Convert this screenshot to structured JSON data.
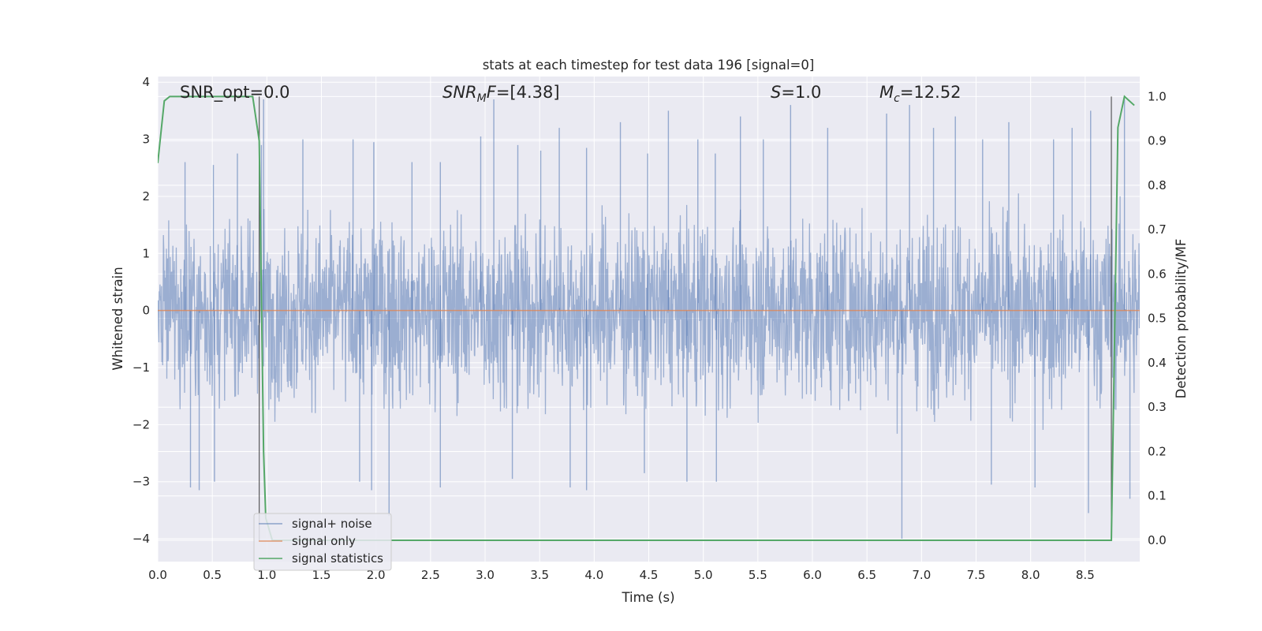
{
  "chart_data": {
    "type": "line",
    "title": "stats at each timestep for test data 196 [signal=0]",
    "xlabel": "Time (s)",
    "ylabel_left": "Whitened strain",
    "ylabel_right": "Detection probability/MF",
    "xlim": [
      0.0,
      9.0
    ],
    "ylim_left": [
      -4.4,
      4.1
    ],
    "ylim_right": [
      -0.048,
      1.045
    ],
    "x_ticks": [
      "0.0",
      "0.5",
      "1.0",
      "1.5",
      "2.0",
      "2.5",
      "3.0",
      "3.5",
      "4.0",
      "4.5",
      "5.0",
      "5.5",
      "6.0",
      "6.5",
      "7.0",
      "7.5",
      "8.0",
      "8.5"
    ],
    "y_ticks_left": [
      "4",
      "3",
      "2",
      "1",
      "0",
      "−1",
      "−2",
      "−3",
      "−4"
    ],
    "y_ticks_right": [
      "1.0",
      "0.9",
      "0.8",
      "0.7",
      "0.6",
      "0.5",
      "0.4",
      "0.3",
      "0.2",
      "0.1",
      "0.0"
    ],
    "grid": true,
    "annotations": {
      "snr_opt": "SNR_opt=0.0",
      "snr_mf_main": "SNR",
      "snr_mf_sub": "M",
      "snr_mf_rest": "F",
      "snr_mf_value": "=[4.38]",
      "s_main": "S",
      "s_value": "=1.0",
      "mc_main": "M",
      "mc_sub": "c",
      "mc_value": "=12.52"
    },
    "vertical_markers_x": [
      0.93,
      8.74
    ],
    "legend_position": "lower-left",
    "series": [
      {
        "name": "signal+ noise",
        "axis": "left",
        "color": "#4c72b0",
        "description_type": "dense_noise",
        "envelope_typical": [
          -1.7,
          1.45
        ],
        "spikes": [
          [
            0.97,
            3.7
          ],
          [
            0.25,
            2.6
          ],
          [
            0.51,
            2.55
          ],
          [
            0.73,
            2.75
          ],
          [
            0.95,
            2.9
          ],
          [
            1.33,
            3.0
          ],
          [
            1.79,
            3.0
          ],
          [
            1.98,
            2.95
          ],
          [
            2.33,
            2.6
          ],
          [
            2.59,
            2.6
          ],
          [
            2.96,
            3.05
          ],
          [
            3.08,
            3.7
          ],
          [
            3.3,
            2.9
          ],
          [
            3.51,
            2.8
          ],
          [
            3.68,
            3.2
          ],
          [
            3.93,
            2.85
          ],
          [
            4.24,
            3.3
          ],
          [
            4.49,
            2.75
          ],
          [
            4.68,
            3.5
          ],
          [
            4.95,
            3.0
          ],
          [
            5.11,
            2.75
          ],
          [
            5.34,
            3.4
          ],
          [
            5.55,
            3.0
          ],
          [
            5.8,
            3.6
          ],
          [
            6.14,
            3.2
          ],
          [
            6.68,
            3.45
          ],
          [
            6.89,
            3.6
          ],
          [
            7.11,
            3.2
          ],
          [
            7.31,
            3.4
          ],
          [
            7.56,
            3.0
          ],
          [
            7.8,
            3.3
          ],
          [
            8.21,
            3.0
          ],
          [
            8.38,
            3.2
          ],
          [
            8.55,
            3.5
          ],
          [
            8.86,
            3.7
          ],
          [
            0.3,
            -3.1
          ],
          [
            0.38,
            -3.15
          ],
          [
            0.52,
            -3.0
          ],
          [
            1.85,
            -3.0
          ],
          [
            1.96,
            -3.15
          ],
          [
            2.12,
            -3.6
          ],
          [
            2.59,
            -3.1
          ],
          [
            3.25,
            -2.95
          ],
          [
            3.78,
            -3.1
          ],
          [
            3.93,
            -3.15
          ],
          [
            4.46,
            -2.85
          ],
          [
            4.85,
            -3.0
          ],
          [
            5.12,
            -3.0
          ],
          [
            6.82,
            -4.0
          ],
          [
            7.64,
            -3.05
          ],
          [
            8.04,
            -3.1
          ],
          [
            8.53,
            -3.55
          ],
          [
            8.91,
            -3.3
          ]
        ]
      },
      {
        "name": "signal only",
        "axis": "left",
        "color": "#dd8452",
        "x": [
          0.0,
          9.0
        ],
        "y": [
          0.0,
          0.0
        ]
      },
      {
        "name": "signal statistics",
        "axis": "right",
        "color": "#55a868",
        "x": [
          0.0,
          0.06,
          0.11,
          0.5,
          0.87,
          0.93,
          0.97,
          0.99,
          1.05,
          8.74,
          8.8,
          8.86,
          8.95
        ],
        "y": [
          0.85,
          0.99,
          1.0,
          1.0,
          1.0,
          0.9,
          0.2,
          0.05,
          0.0,
          0.0,
          0.93,
          1.0,
          0.98
        ]
      }
    ]
  }
}
